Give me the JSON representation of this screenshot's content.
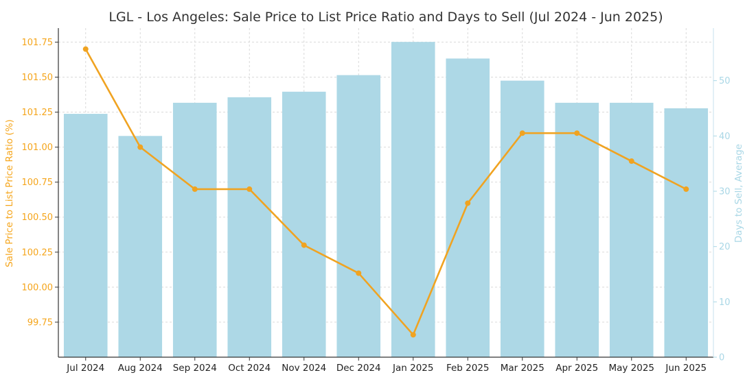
{
  "chart_data": {
    "type": "bar+line",
    "title": "LGL - Los Angeles: Sale Price to List Price Ratio and Days to Sell (Jul 2024 - Jun 2025)",
    "categories": [
      "Jul 2024",
      "Aug 2024",
      "Sep 2024",
      "Oct 2024",
      "Nov 2024",
      "Dec 2024",
      "Jan 2025",
      "Feb 2025",
      "Mar 2025",
      "Apr 2025",
      "May 2025",
      "Jun 2025"
    ],
    "left_axis": {
      "label": "Sale Price to List Price Ratio (%)",
      "ylim": [
        99.5,
        101.85
      ],
      "ticks": [
        "99.75",
        "100.00",
        "100.25",
        "100.50",
        "100.75",
        "101.00",
        "101.25",
        "101.50",
        "101.75"
      ],
      "color": "#f5a51b"
    },
    "right_axis": {
      "label": "Days to Sell, Average",
      "ylim": [
        0,
        59.5
      ],
      "ticks": [
        "0",
        "10",
        "20",
        "30",
        "40",
        "50"
      ],
      "color": "#a9d7e6"
    },
    "bar_series": {
      "name": "Days to Sell, Average",
      "axis": "right",
      "color": "#add8e6",
      "values": [
        44,
        40,
        46,
        47,
        48,
        51,
        57,
        54,
        50,
        46,
        46,
        45
      ]
    },
    "line_series": {
      "name": "Sale Price to List Price Ratio (%)",
      "axis": "left",
      "color": "#f0a321",
      "values": [
        101.7,
        101.0,
        100.7,
        100.7,
        100.3,
        100.1,
        99.66,
        100.6,
        101.1,
        101.1,
        100.9,
        100.7
      ]
    },
    "grid": true
  }
}
